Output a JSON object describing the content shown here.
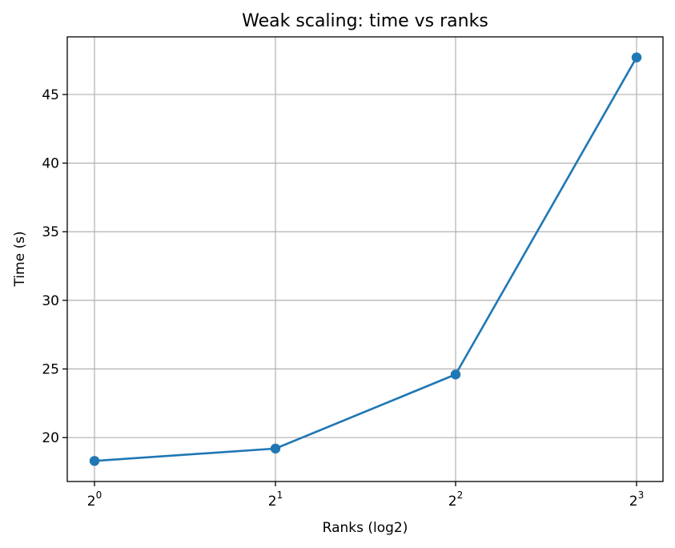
{
  "chart_data": {
    "type": "line",
    "title": "Weak scaling: time vs ranks",
    "xlabel": "Ranks (log2)",
    "ylabel": "Time (s)",
    "x_scale": "log2",
    "x": [
      1,
      2,
      4,
      8
    ],
    "x_tick_labels": [
      {
        "base": "2",
        "exp": "0"
      },
      {
        "base": "2",
        "exp": "1"
      },
      {
        "base": "2",
        "exp": "2"
      },
      {
        "base": "2",
        "exp": "3"
      }
    ],
    "y_ticks": [
      20,
      25,
      30,
      35,
      40,
      45
    ],
    "ylim": [
      16.8,
      49.2
    ],
    "grid": true,
    "series": [
      {
        "values": [
          18.3,
          19.2,
          24.6,
          47.7
        ],
        "color": "#1f77b4",
        "marker": "circle"
      }
    ]
  }
}
